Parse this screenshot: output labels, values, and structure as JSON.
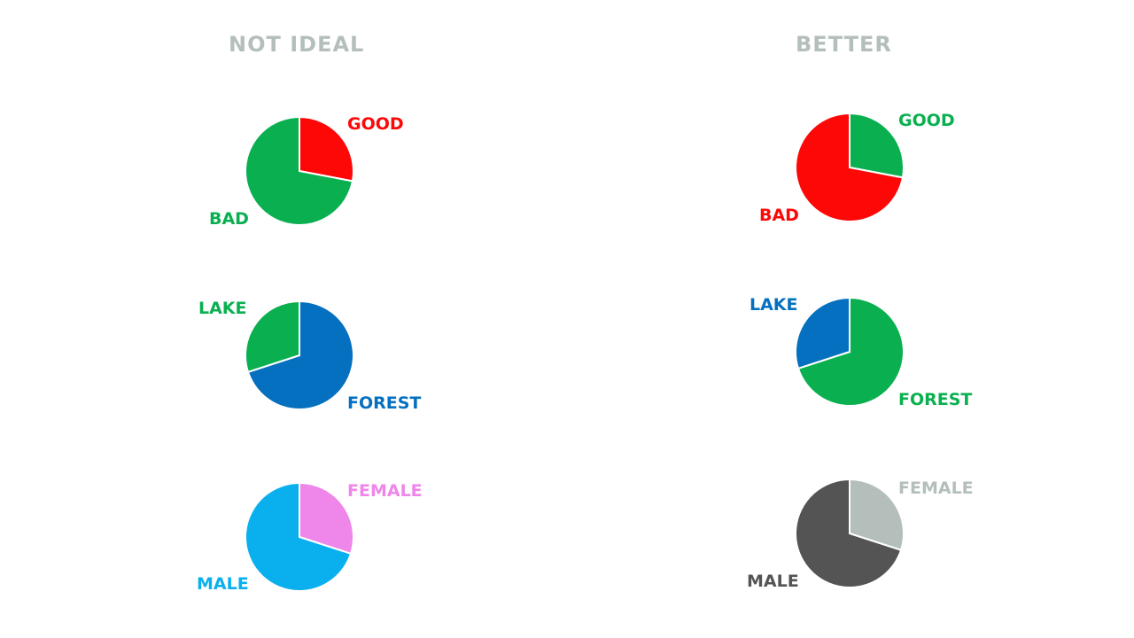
{
  "columns": {
    "left_title": "NOT IDEAL",
    "right_title": "BETTER"
  },
  "chart_data": [
    {
      "type": "pie",
      "group": "NOT IDEAL",
      "slices": [
        {
          "label": "GOOD",
          "value": 28,
          "color": "#fe0707"
        },
        {
          "label": "BAD",
          "value": 72,
          "color": "#0ab050"
        }
      ]
    },
    {
      "type": "pie",
      "group": "NOT IDEAL",
      "slices": [
        {
          "label": "FOREST",
          "value": 70,
          "color": "#0470bf"
        },
        {
          "label": "LAKE",
          "value": 30,
          "color": "#0ab050"
        }
      ]
    },
    {
      "type": "pie",
      "group": "NOT IDEAL",
      "slices": [
        {
          "label": "FEMALE",
          "value": 30,
          "color": "#ef86ea"
        },
        {
          "label": "MALE",
          "value": 70,
          "color": "#0ab0ee"
        }
      ]
    },
    {
      "type": "pie",
      "group": "BETTER",
      "slices": [
        {
          "label": "GOOD",
          "value": 28,
          "color": "#0ab050"
        },
        {
          "label": "BAD",
          "value": 72,
          "color": "#fe0707"
        }
      ]
    },
    {
      "type": "pie",
      "group": "BETTER",
      "slices": [
        {
          "label": "FOREST",
          "value": 70,
          "color": "#0ab050"
        },
        {
          "label": "LAKE",
          "value": 30,
          "color": "#0470bf"
        }
      ]
    },
    {
      "type": "pie",
      "group": "BETTER",
      "slices": [
        {
          "label": "FEMALE",
          "value": 30,
          "color": "#b4bfbc"
        },
        {
          "label": "MALE",
          "value": 70,
          "color": "#545454"
        }
      ]
    }
  ]
}
